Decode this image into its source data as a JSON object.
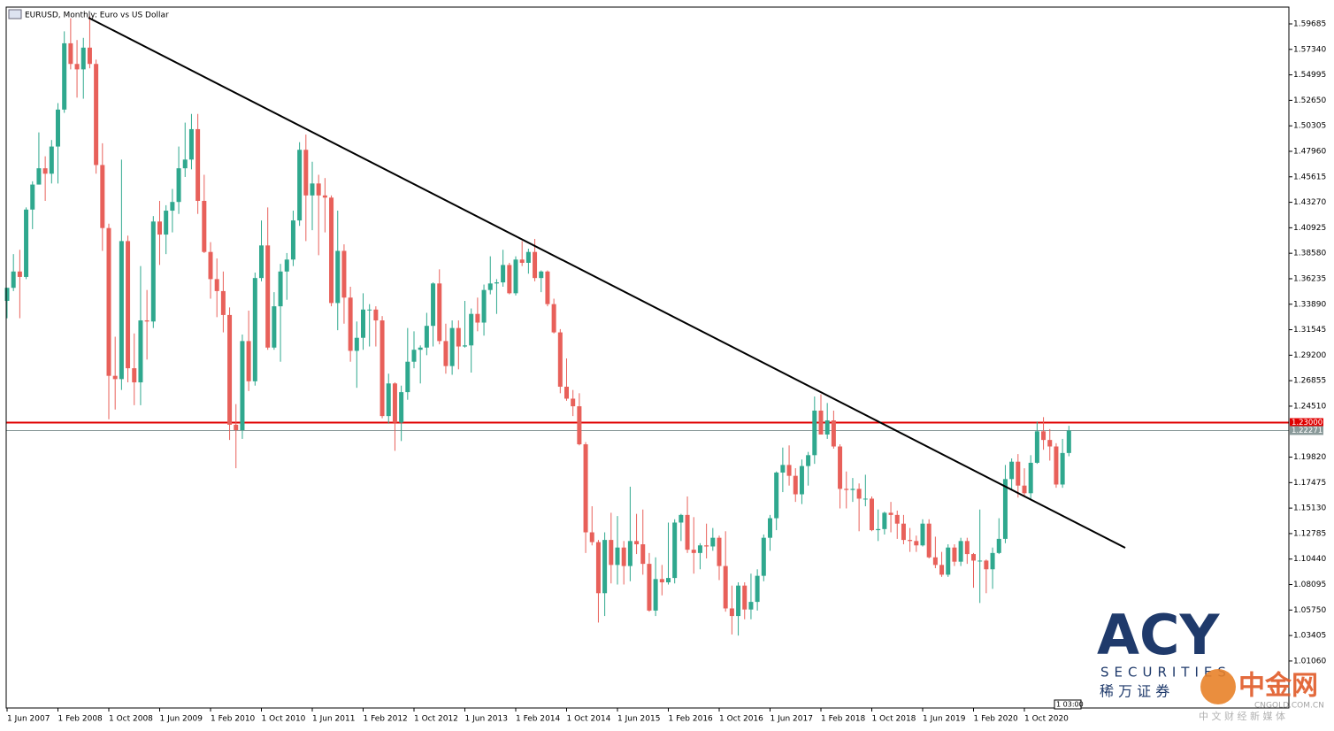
{
  "chart_data": {
    "type": "candlestick",
    "title": "EURUSD, Monthly:  Euro vs US Dollar",
    "up_color": "#2fa88e",
    "down_color": "#e8605a",
    "ylim": [
      0.96737,
      1.61232
    ],
    "yticks": [
      {
        "value": 1.59685,
        "label": "1.59685"
      },
      {
        "value": 1.5734,
        "label": "1.57340"
      },
      {
        "value": 1.54995,
        "label": "1.54995"
      },
      {
        "value": 1.5265,
        "label": "1.52650"
      },
      {
        "value": 1.50305,
        "label": "1.50305"
      },
      {
        "value": 1.4796,
        "label": "1.47960"
      },
      {
        "value": 1.45615,
        "label": "1.45615"
      },
      {
        "value": 1.4327,
        "label": "1.43270"
      },
      {
        "value": 1.40925,
        "label": "1.40925"
      },
      {
        "value": 1.3858,
        "label": "1.38580"
      },
      {
        "value": 1.36235,
        "label": "1.36235"
      },
      {
        "value": 1.3389,
        "label": "1.33890"
      },
      {
        "value": 1.31545,
        "label": "1.31545"
      },
      {
        "value": 1.292,
        "label": "1.29200"
      },
      {
        "value": 1.26855,
        "label": "1.26855"
      },
      {
        "value": 1.2451,
        "label": "1.24510"
      },
      {
        "value": 1.1982,
        "label": "1.19820"
      },
      {
        "value": 1.17475,
        "label": "1.17475"
      },
      {
        "value": 1.1513,
        "label": "1.15130"
      },
      {
        "value": 1.12785,
        "label": "1.12785"
      },
      {
        "value": 1.1044,
        "label": "1.10440"
      },
      {
        "value": 1.08095,
        "label": "1.08095"
      },
      {
        "value": 1.0575,
        "label": "1.05750"
      },
      {
        "value": 1.03405,
        "label": "1.03405"
      },
      {
        "value": 1.0106,
        "label": "1.01060"
      }
    ],
    "level_line": {
      "value": 1.23,
      "label": "1.23000",
      "color": "#e00000"
    },
    "bid_line": {
      "value": 1.22271,
      "label": "1.22271",
      "color": "#8a9a9a"
    },
    "time_label": "1 03:00",
    "categories": [
      "1 Jun 2007",
      null,
      null,
      null,
      null,
      null,
      null,
      null,
      "1 Feb 2008",
      null,
      null,
      null,
      null,
      null,
      null,
      null,
      "1 Oct 2008",
      null,
      null,
      null,
      null,
      null,
      null,
      null,
      "1 Jun 2009",
      null,
      null,
      null,
      null,
      null,
      null,
      null,
      "1 Feb 2010",
      null,
      null,
      null,
      null,
      null,
      null,
      null,
      "1 Oct 2010",
      null,
      null,
      null,
      null,
      null,
      null,
      null,
      "1 Jun 2011",
      null,
      null,
      null,
      null,
      null,
      null,
      null,
      "1 Feb 2012",
      null,
      null,
      null,
      null,
      null,
      null,
      null,
      "1 Oct 2012",
      null,
      null,
      null,
      null,
      null,
      null,
      null,
      "1 Jun 2013",
      null,
      null,
      null,
      null,
      null,
      null,
      null,
      "1 Feb 2014",
      null,
      null,
      null,
      null,
      null,
      null,
      null,
      "1 Oct 2014",
      null,
      null,
      null,
      null,
      null,
      null,
      null,
      "1 Jun 2015",
      null,
      null,
      null,
      null,
      null,
      null,
      null,
      "1 Feb 2016",
      null,
      null,
      null,
      null,
      null,
      null,
      null,
      "1 Oct 2016",
      null,
      null,
      null,
      null,
      null,
      null,
      null,
      "1 Jun 2017",
      null,
      null,
      null,
      null,
      null,
      null,
      null,
      "1 Feb 2018",
      null,
      null,
      null,
      null,
      null,
      null,
      null,
      "1 Oct 2018",
      null,
      null,
      null,
      null,
      null,
      null,
      null,
      "1 Jun 2019",
      null,
      null,
      null,
      null,
      null,
      null,
      null,
      "1 Feb 2020",
      null,
      null,
      null,
      null,
      null,
      null,
      null,
      "1 Oct 2020",
      null,
      null,
      null,
      null,
      null,
      null,
      null
    ],
    "open": [
      1.342,
      1.354,
      1.369,
      1.364,
      1.426,
      1.449,
      1.464,
      1.459,
      1.484,
      1.518,
      1.579,
      1.56,
      1.555,
      1.575,
      1.56,
      1.467,
      1.409,
      1.273,
      1.27,
      1.397,
      1.28,
      1.267,
      1.324,
      1.323,
      1.415,
      1.403,
      1.425,
      1.433,
      1.464,
      1.472,
      1.5,
      1.434,
      1.387,
      1.362,
      1.351,
      1.329,
      1.228,
      1.223,
      1.305,
      1.268,
      1.363,
      1.393,
      1.299,
      1.337,
      1.369,
      1.38,
      1.416,
      1.481,
      1.439,
      1.45,
      1.439,
      1.437,
      1.34,
      1.388,
      1.345,
      1.296,
      1.308,
      1.334,
      1.334,
      1.324,
      1.236,
      1.266,
      1.23,
      1.258,
      1.286,
      1.297,
      1.299,
      1.319,
      1.358,
      1.305,
      1.282,
      1.317,
      1.3,
      1.301,
      1.33,
      1.322,
      1.352,
      1.358,
      1.359,
      1.375,
      1.349,
      1.38,
      1.377,
      1.387,
      1.363,
      1.369,
      1.339,
      1.313,
      1.263,
      1.252,
      1.245,
      1.21,
      1.129,
      1.12,
      1.073,
      1.122,
      1.099,
      1.115,
      1.098,
      1.121,
      1.118,
      1.1,
      1.057,
      1.086,
      1.083,
      1.087,
      1.138,
      1.145,
      1.113,
      1.11,
      1.117,
      1.116,
      1.124,
      1.098,
      1.059,
      1.052,
      1.08,
      1.058,
      1.065,
      1.089,
      1.124,
      1.142,
      1.184,
      1.191,
      1.181,
      1.164,
      1.19,
      1.2,
      1.241,
      1.219,
      1.232,
      1.208,
      1.169,
      1.168,
      1.169,
      1.16,
      1.16,
      1.131,
      1.132,
      1.147,
      1.145,
      1.137,
      1.122,
      1.121,
      1.117,
      1.137,
      1.106,
      1.099,
      1.09,
      1.115,
      1.102,
      1.121,
      1.109,
      1.103,
      1.103,
      1.095,
      1.11,
      1.123,
      1.178,
      1.194,
      1.172,
      1.165,
      1.193,
      1.222,
      1.214,
      1.208,
      1.173,
      1.202
    ],
    "high": [
      1.354,
      1.385,
      1.389,
      1.428,
      1.452,
      1.497,
      1.475,
      1.49,
      1.524,
      1.59,
      1.602,
      1.582,
      1.584,
      1.604,
      1.564,
      1.487,
      1.413,
      1.309,
      1.472,
      1.402,
      1.312,
      1.374,
      1.352,
      1.42,
      1.434,
      1.43,
      1.445,
      1.484,
      1.506,
      1.514,
      1.514,
      1.458,
      1.396,
      1.381,
      1.369,
      1.336,
      1.247,
      1.311,
      1.333,
      1.368,
      1.416,
      1.428,
      1.35,
      1.376,
      1.386,
      1.425,
      1.488,
      1.495,
      1.47,
      1.458,
      1.455,
      1.439,
      1.425,
      1.394,
      1.355,
      1.323,
      1.349,
      1.339,
      1.337,
      1.328,
      1.275,
      1.267,
      1.264,
      1.317,
      1.314,
      1.301,
      1.331,
      1.359,
      1.371,
      1.321,
      1.324,
      1.324,
      1.342,
      1.335,
      1.345,
      1.357,
      1.383,
      1.362,
      1.389,
      1.377,
      1.383,
      1.397,
      1.39,
      1.399,
      1.37,
      1.37,
      1.344,
      1.316,
      1.289,
      1.26,
      1.257,
      1.212,
      1.153,
      1.122,
      1.129,
      1.147,
      1.144,
      1.121,
      1.171,
      1.146,
      1.15,
      1.11,
      1.106,
      1.099,
      1.138,
      1.141,
      1.146,
      1.162,
      1.143,
      1.119,
      1.137,
      1.133,
      1.126,
      1.13,
      1.08,
      1.083,
      1.083,
      1.091,
      1.095,
      1.127,
      1.145,
      1.185,
      1.207,
      1.209,
      1.188,
      1.196,
      1.203,
      1.254,
      1.256,
      1.248,
      1.241,
      1.21,
      1.185,
      1.179,
      1.174,
      1.182,
      1.162,
      1.15,
      1.148,
      1.157,
      1.149,
      1.145,
      1.133,
      1.126,
      1.141,
      1.141,
      1.125,
      1.111,
      1.118,
      1.118,
      1.124,
      1.124,
      1.11,
      1.15,
      1.104,
      1.115,
      1.142,
      1.191,
      1.197,
      1.201,
      1.188,
      1.2,
      1.231,
      1.235,
      1.224,
      1.211,
      1.215,
      1.227
    ],
    "low": [
      1.326,
      1.351,
      1.326,
      1.362,
      1.408,
      1.449,
      1.434,
      1.45,
      1.45,
      1.515,
      1.555,
      1.529,
      1.528,
      1.556,
      1.459,
      1.388,
      1.233,
      1.242,
      1.26,
      1.267,
      1.246,
      1.246,
      1.288,
      1.317,
      1.375,
      1.385,
      1.405,
      1.422,
      1.456,
      1.463,
      1.422,
      1.386,
      1.344,
      1.327,
      1.313,
      1.214,
      1.188,
      1.215,
      1.259,
      1.264,
      1.36,
      1.297,
      1.297,
      1.286,
      1.343,
      1.374,
      1.411,
      1.397,
      1.407,
      1.384,
      1.405,
      1.337,
      1.315,
      1.321,
      1.286,
      1.262,
      1.297,
      1.3,
      1.3,
      1.234,
      1.229,
      1.204,
      1.213,
      1.251,
      1.28,
      1.266,
      1.292,
      1.3,
      1.302,
      1.275,
      1.274,
      1.279,
      1.299,
      1.276,
      1.314,
      1.31,
      1.348,
      1.33,
      1.355,
      1.348,
      1.347,
      1.374,
      1.367,
      1.36,
      1.35,
      1.337,
      1.312,
      1.257,
      1.25,
      1.236,
      1.209,
      1.11,
      1.117,
      1.046,
      1.052,
      1.082,
      1.081,
      1.081,
      1.084,
      1.109,
      1.09,
      1.056,
      1.052,
      1.071,
      1.081,
      1.082,
      1.121,
      1.11,
      1.091,
      1.095,
      1.105,
      1.112,
      1.085,
      1.056,
      1.035,
      1.034,
      1.049,
      1.049,
      1.057,
      1.084,
      1.112,
      1.131,
      1.166,
      1.172,
      1.157,
      1.155,
      1.172,
      1.192,
      1.219,
      1.215,
      1.206,
      1.151,
      1.151,
      1.157,
      1.13,
      1.153,
      1.13,
      1.121,
      1.127,
      1.129,
      1.123,
      1.118,
      1.111,
      1.111,
      1.116,
      1.105,
      1.096,
      1.088,
      1.088,
      1.098,
      1.098,
      1.1,
      1.078,
      1.064,
      1.073,
      1.077,
      1.109,
      1.119,
      1.169,
      1.161,
      1.162,
      1.16,
      1.192,
      1.205,
      1.195,
      1.17,
      1.17,
      1.199
    ],
    "close": [
      1.354,
      1.369,
      1.364,
      1.426,
      1.449,
      1.464,
      1.459,
      1.484,
      1.518,
      1.579,
      1.56,
      1.555,
      1.575,
      1.56,
      1.467,
      1.409,
      1.273,
      1.27,
      1.397,
      1.28,
      1.267,
      1.324,
      1.323,
      1.415,
      1.403,
      1.425,
      1.433,
      1.464,
      1.472,
      1.5,
      1.434,
      1.387,
      1.362,
      1.351,
      1.329,
      1.228,
      1.223,
      1.305,
      1.268,
      1.363,
      1.393,
      1.299,
      1.337,
      1.369,
      1.38,
      1.416,
      1.481,
      1.439,
      1.45,
      1.439,
      1.437,
      1.34,
      1.388,
      1.345,
      1.296,
      1.308,
      1.334,
      1.334,
      1.324,
      1.236,
      1.266,
      1.23,
      1.258,
      1.286,
      1.297,
      1.299,
      1.319,
      1.358,
      1.305,
      1.282,
      1.317,
      1.3,
      1.301,
      1.33,
      1.322,
      1.352,
      1.358,
      1.359,
      1.375,
      1.349,
      1.38,
      1.377,
      1.387,
      1.363,
      1.369,
      1.339,
      1.313,
      1.263,
      1.252,
      1.245,
      1.21,
      1.129,
      1.12,
      1.073,
      1.122,
      1.099,
      1.115,
      1.098,
      1.121,
      1.118,
      1.1,
      1.057,
      1.086,
      1.083,
      1.087,
      1.138,
      1.145,
      1.113,
      1.11,
      1.117,
      1.116,
      1.124,
      1.098,
      1.059,
      1.052,
      1.08,
      1.058,
      1.065,
      1.089,
      1.124,
      1.142,
      1.184,
      1.191,
      1.181,
      1.164,
      1.19,
      1.2,
      1.241,
      1.219,
      1.232,
      1.208,
      1.169,
      1.168,
      1.169,
      1.16,
      1.16,
      1.131,
      1.132,
      1.147,
      1.145,
      1.137,
      1.122,
      1.121,
      1.117,
      1.137,
      1.106,
      1.099,
      1.09,
      1.115,
      1.102,
      1.121,
      1.109,
      1.103,
      1.103,
      1.095,
      1.11,
      1.123,
      1.178,
      1.194,
      1.172,
      1.165,
      1.193,
      1.222,
      1.214,
      1.208,
      1.173,
      1.202,
      1.2227
    ]
  },
  "watermarks": {
    "brand": "ACY",
    "brand_sub": "SECURITIES",
    "brand_cn": "稀  万  证  券",
    "site": "中金网",
    "site_url": "CNGOLD.COM.CN",
    "site_tag": "中 文 财 经 新 媒 体"
  }
}
